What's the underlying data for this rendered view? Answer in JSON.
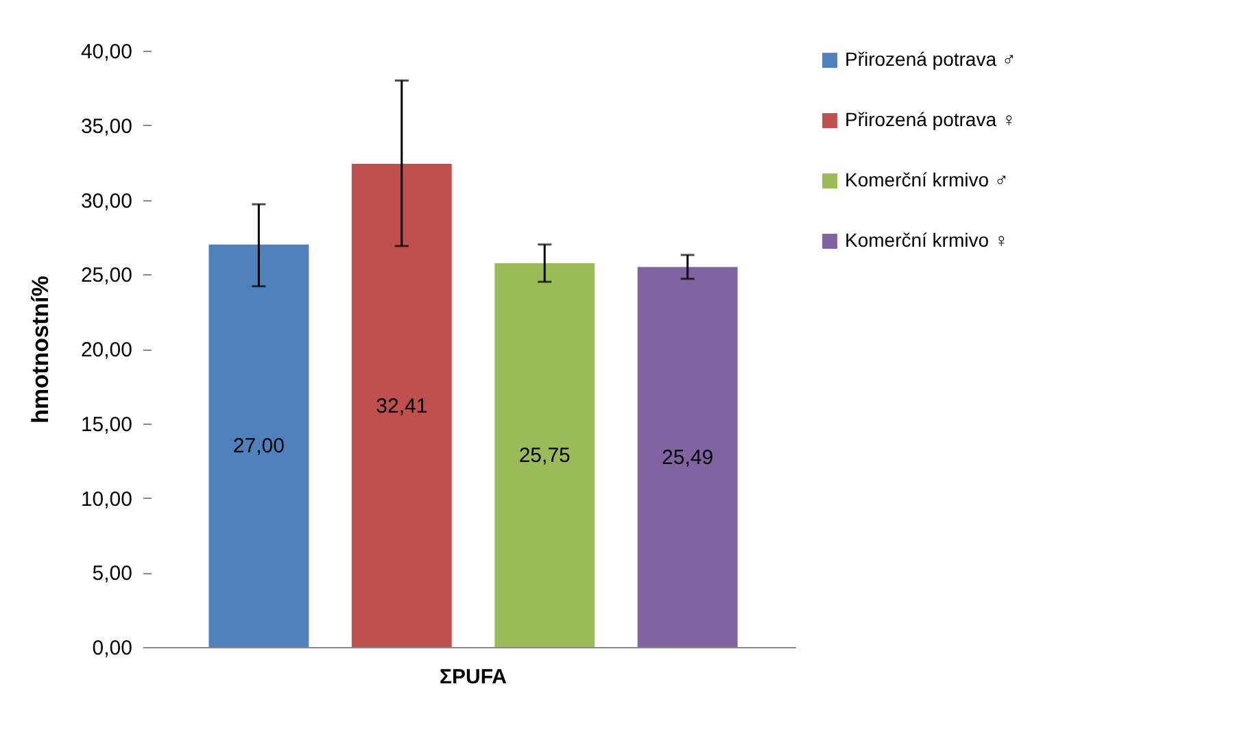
{
  "chart_data": {
    "type": "bar",
    "ylabel": "hmotnostní%",
    "categories": [
      "ΣPUFA"
    ],
    "series": [
      {
        "name": "Přirozená potrava ♂",
        "color": "#4f81bd",
        "values": [
          27.0
        ],
        "errors": [
          [
            24.2,
            29.7
          ]
        ],
        "value_labels": [
          "27,00"
        ]
      },
      {
        "name": "Přirozená potrava ♀",
        "color": "#c0504d",
        "values": [
          32.41
        ],
        "errors": [
          [
            26.9,
            38.0
          ]
        ],
        "value_labels": [
          "32,41"
        ]
      },
      {
        "name": "Komerční krmivo ♂",
        "color": "#9bbb59",
        "values": [
          25.75
        ],
        "errors": [
          [
            24.5,
            27.0
          ]
        ],
        "value_labels": [
          "25,75"
        ]
      },
      {
        "name": "Komerční krmivo ♀",
        "color": "#8064a2",
        "values": [
          25.49
        ],
        "errors": [
          [
            24.7,
            26.3
          ]
        ],
        "value_labels": [
          "25,49"
        ]
      }
    ],
    "ylim": [
      0,
      40
    ],
    "yticks": [
      {
        "value": 0,
        "label": "0,00"
      },
      {
        "value": 5,
        "label": "5,00"
      },
      {
        "value": 10,
        "label": "10,00"
      },
      {
        "value": 15,
        "label": "15,00"
      },
      {
        "value": 20,
        "label": "20,00"
      },
      {
        "value": 25,
        "label": "25,00"
      },
      {
        "value": 30,
        "label": "30,00"
      },
      {
        "value": 35,
        "label": "35,00"
      },
      {
        "value": 40,
        "label": "40,00"
      }
    ],
    "grid": false,
    "legend": "right"
  }
}
